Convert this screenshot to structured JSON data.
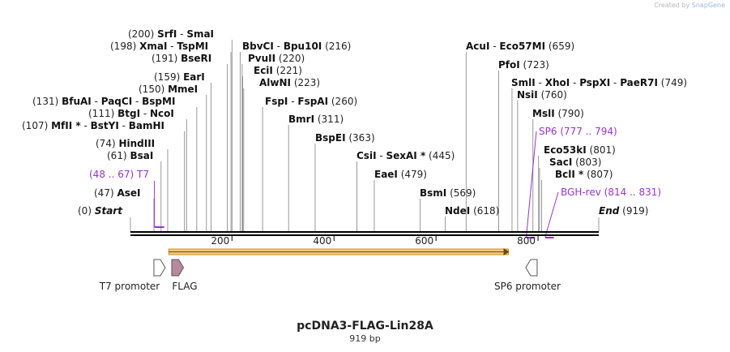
{
  "credit": {
    "prefix": "Created by",
    "brand": "SnapGene"
  },
  "title": "pcDNA3-FLAG-Lin28A",
  "length_label": "919 bp",
  "axis": {
    "min": 1,
    "max": 919,
    "ticks": [
      200,
      400,
      600,
      800
    ]
  },
  "ends": [
    {
      "name": "Start",
      "pos": "0"
    },
    {
      "name": "End",
      "pos": "919"
    }
  ],
  "sites": [
    {
      "names": [
        "SrfI",
        "SmaI"
      ],
      "pos": "200"
    },
    {
      "names": [
        "XmaI",
        "TspMI"
      ],
      "pos": "198"
    },
    {
      "names": [
        "BseRI"
      ],
      "pos": "191"
    },
    {
      "names": [
        "EarI"
      ],
      "pos": "159"
    },
    {
      "names": [
        "MmeI"
      ],
      "pos": "150"
    },
    {
      "names": [
        "BfuAI",
        "PaqCI",
        "BspMI"
      ],
      "pos": "131"
    },
    {
      "names": [
        "BtgI",
        "NcoI"
      ],
      "pos": "111"
    },
    {
      "names": [
        "MfII *",
        "BstYI",
        "BamHI"
      ],
      "pos": "107"
    },
    {
      "names": [
        "HindIII"
      ],
      "pos": "74"
    },
    {
      "names": [
        "BsaI"
      ],
      "pos": "61"
    },
    {
      "names": [
        "AseI"
      ],
      "pos": "47"
    },
    {
      "names": [
        "BbvCI",
        "Bpu10I"
      ],
      "pos": "216"
    },
    {
      "names": [
        "PvuII"
      ],
      "pos": "220"
    },
    {
      "names": [
        "EciI"
      ],
      "pos": "221"
    },
    {
      "names": [
        "AlwNI"
      ],
      "pos": "223"
    },
    {
      "names": [
        "FspI",
        "FspAI"
      ],
      "pos": "260"
    },
    {
      "names": [
        "BmrI"
      ],
      "pos": "311"
    },
    {
      "names": [
        "BspEI"
      ],
      "pos": "363"
    },
    {
      "names": [
        "CsiI",
        "SexAI *"
      ],
      "pos": "445"
    },
    {
      "names": [
        "EaeI"
      ],
      "pos": "479"
    },
    {
      "names": [
        "BsmI"
      ],
      "pos": "569"
    },
    {
      "names": [
        "NdeI"
      ],
      "pos": "618"
    },
    {
      "names": [
        "AcuI",
        "Eco57MI"
      ],
      "pos": "659"
    },
    {
      "names": [
        "PfoI"
      ],
      "pos": "723"
    },
    {
      "names": [
        "SmlI",
        "XhoI",
        "PspXI",
        "PaeR7I"
      ],
      "pos": "749"
    },
    {
      "names": [
        "NsiI"
      ],
      "pos": "760"
    },
    {
      "names": [
        "MslI"
      ],
      "pos": "790"
    },
    {
      "names": [
        "Eco53kI"
      ],
      "pos": "801"
    },
    {
      "names": [
        "SacI"
      ],
      "pos": "803"
    },
    {
      "names": [
        "BclI *"
      ],
      "pos": "807"
    }
  ],
  "primers": [
    {
      "name": "T7",
      "range": "(48 .. 67)",
      "start": 48,
      "end": 67,
      "strand": "fwd"
    },
    {
      "name": "SP6",
      "range": "(777 .. 794)",
      "start": 777,
      "end": 794,
      "strand": "rev"
    },
    {
      "name": "BGH-rev",
      "range": "(814 .. 831)",
      "start": 814,
      "end": 831,
      "strand": "rev"
    }
  ],
  "orf": {
    "start": 76,
    "end": 742
  },
  "features": [
    {
      "name": "T7 promoter",
      "start": 47,
      "end": 65,
      "strand": "fwd",
      "color": "#ffffff"
    },
    {
      "name": "FLAG",
      "start": 82,
      "end": 105,
      "strand": "fwd",
      "color": "#b7899f"
    },
    {
      "name": "SP6 promoter",
      "start": 776,
      "end": 794,
      "strand": "rev",
      "color": "#ffffff"
    }
  ],
  "colors": {
    "primer": "#9933cc",
    "orf_fill": "#f3c87a",
    "orf_edge": "#d9901c",
    "backbone": "#000000",
    "site_line": "#888888"
  }
}
